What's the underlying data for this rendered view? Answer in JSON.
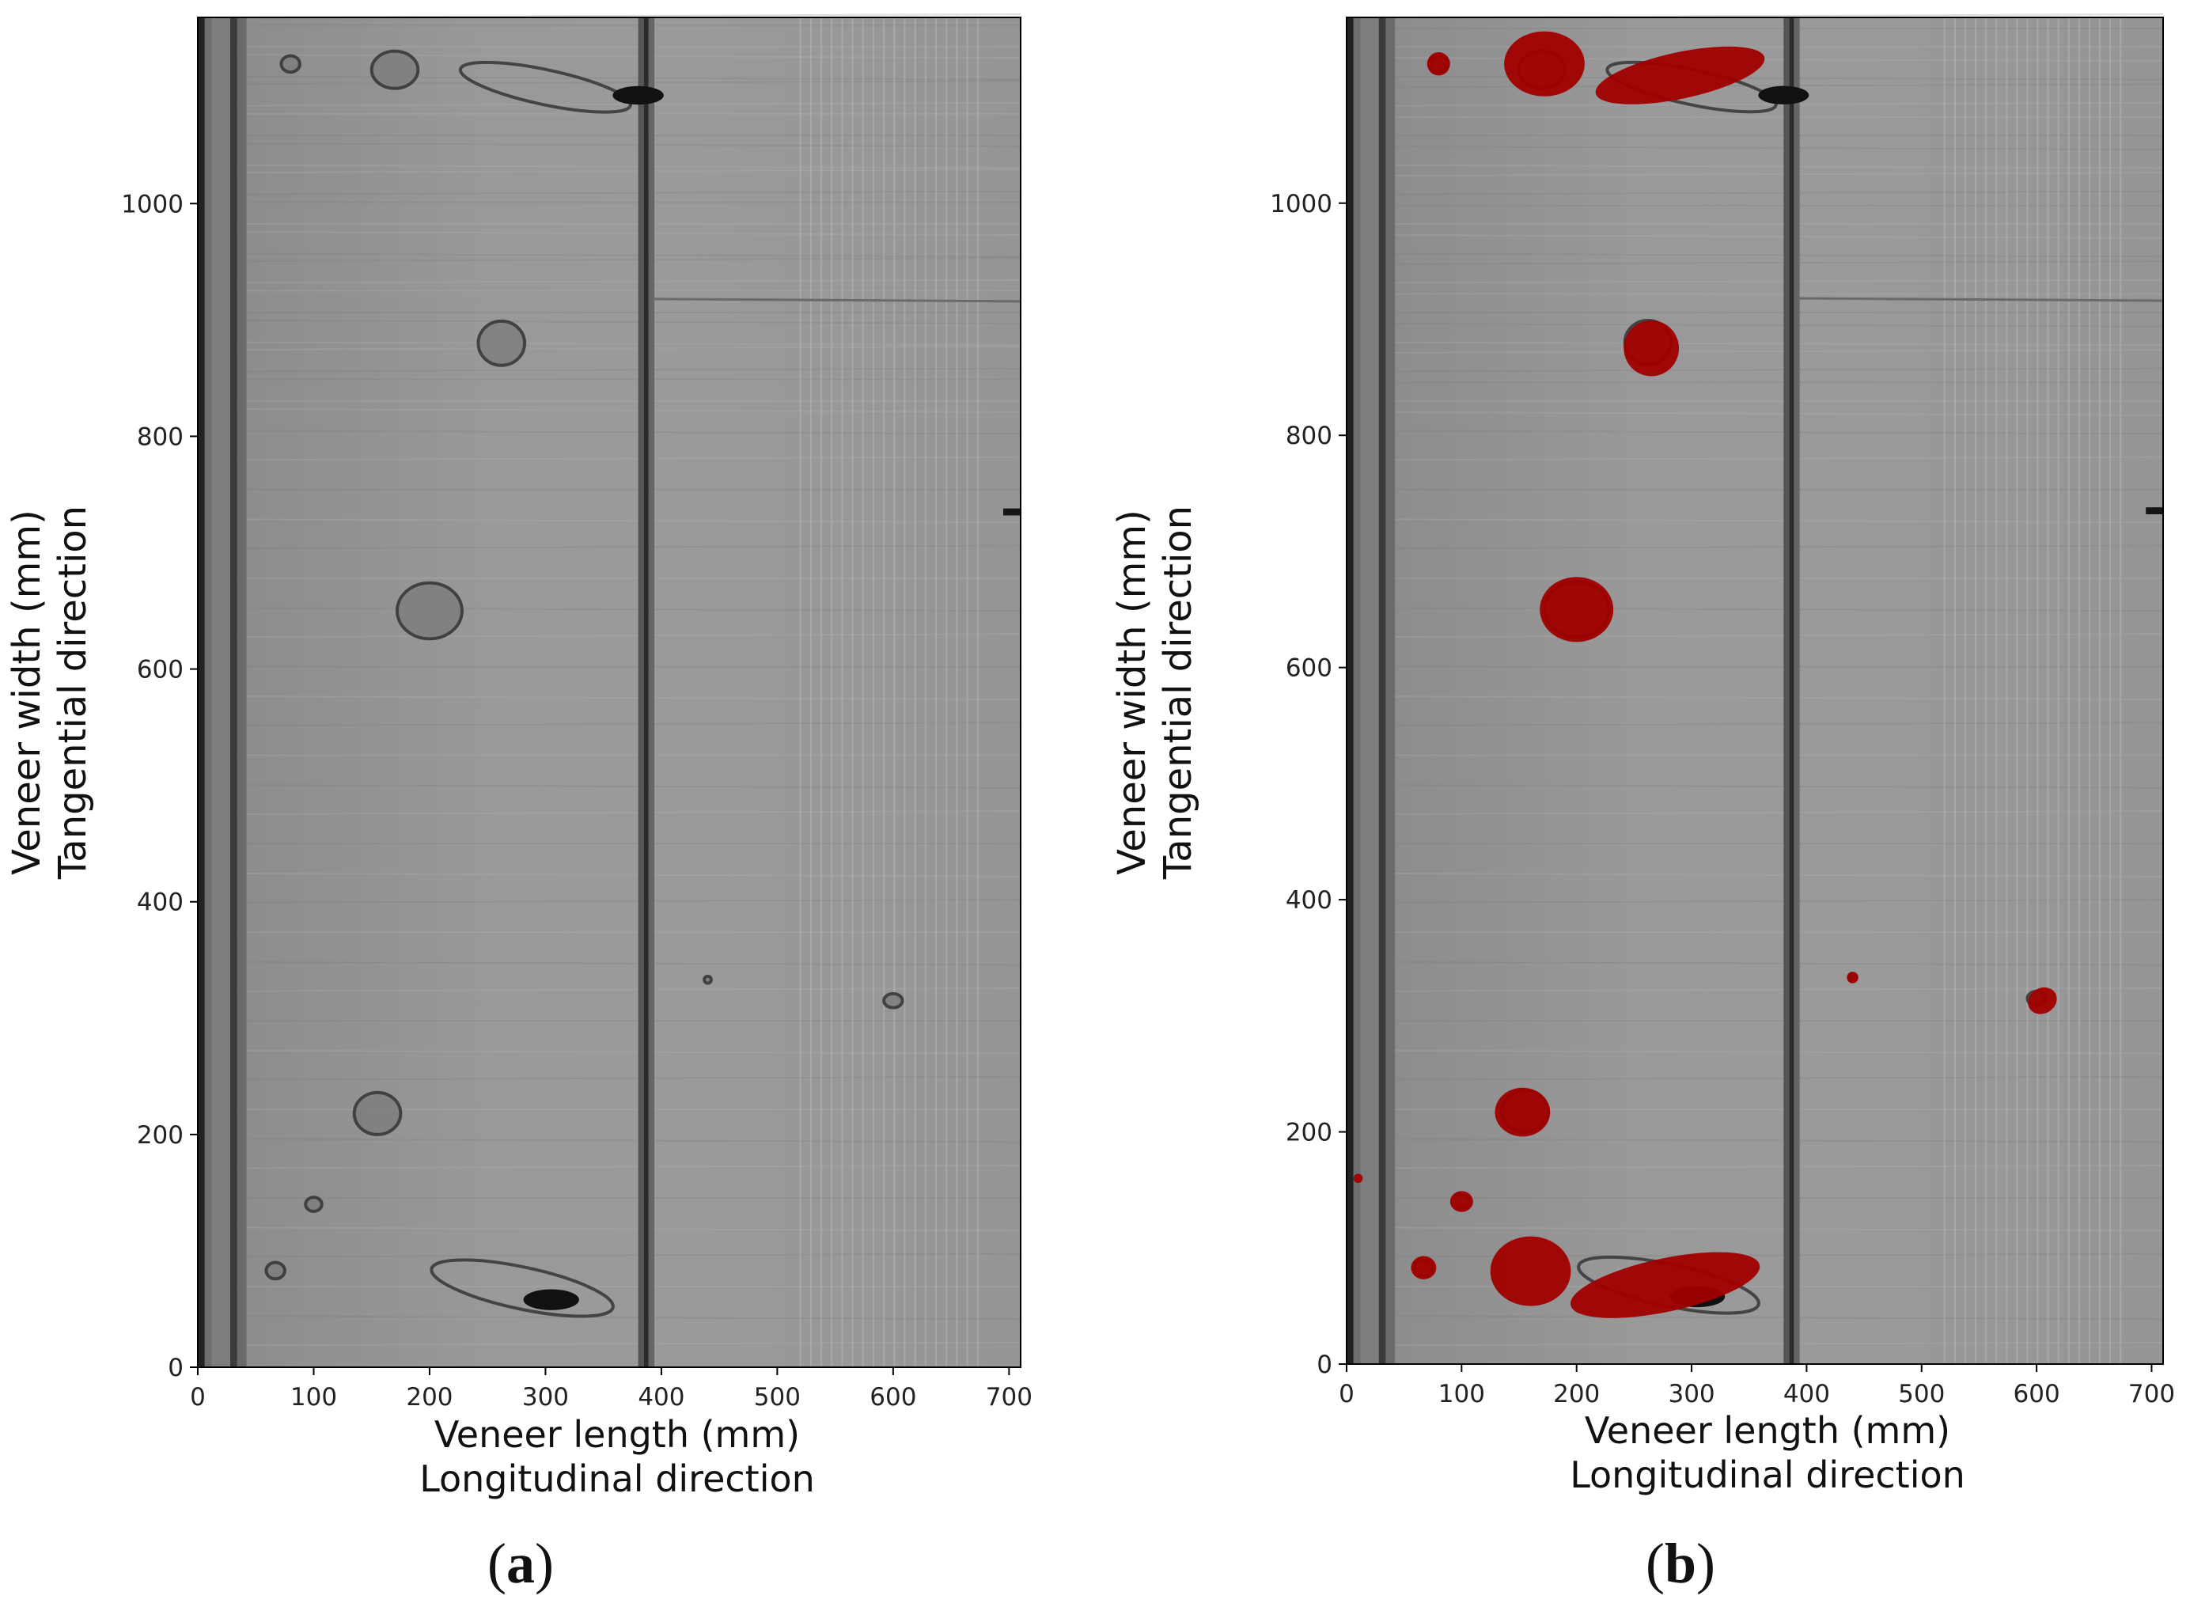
{
  "panels": [
    {
      "id": "a",
      "caption": "a",
      "xlabel_line1": "Veneer length (mm)",
      "xlabel_line2": "Longitudinal direction",
      "ylabel_line1": "Veneer width (mm)",
      "ylabel_line2": "Tangential direction",
      "x_ticks": [
        "0",
        "100",
        "200",
        "300",
        "400",
        "500",
        "600",
        "700"
      ],
      "y_ticks": [
        "0",
        "200",
        "400",
        "600",
        "800",
        "1000"
      ]
    },
    {
      "id": "b",
      "caption": "b",
      "xlabel_line1": "Veneer length (mm)",
      "xlabel_line2": "Longitudinal direction",
      "ylabel_line1": "Veneer width (mm)",
      "ylabel_line2": "Tangential direction",
      "x_ticks": [
        "0",
        "100",
        "200",
        "300",
        "400",
        "500",
        "600",
        "700"
      ],
      "y_ticks": [
        "0",
        "200",
        "400",
        "600",
        "800",
        "1000"
      ]
    }
  ],
  "axes": {
    "xlim": [
      0,
      710
    ],
    "ylim": [
      0,
      1160
    ]
  },
  "colors": {
    "veneer": "#8f8f8f",
    "defect_overlay": "#a00000",
    "knot_dark": "#1a1a1a"
  },
  "defects_b": [
    {
      "x": 80,
      "y": 1120,
      "rx": 10,
      "ry": 10,
      "angle": 0
    },
    {
      "x": 172,
      "y": 1120,
      "rx": 35,
      "ry": 28,
      "angle": 0
    },
    {
      "x": 290,
      "y": 1110,
      "rx": 75,
      "ry": 20,
      "angle": -12
    },
    {
      "x": 265,
      "y": 875,
      "rx": 24,
      "ry": 24,
      "angle": 0
    },
    {
      "x": 200,
      "y": 650,
      "rx": 32,
      "ry": 28,
      "angle": 0
    },
    {
      "x": 440,
      "y": 333,
      "rx": 5,
      "ry": 5,
      "angle": 0
    },
    {
      "x": 605,
      "y": 313,
      "rx": 13,
      "ry": 11,
      "angle": -30
    },
    {
      "x": 153,
      "y": 217,
      "rx": 24,
      "ry": 21,
      "angle": 0
    },
    {
      "x": 10,
      "y": 160,
      "rx": 4,
      "ry": 4,
      "angle": 0
    },
    {
      "x": 100,
      "y": 140,
      "rx": 10,
      "ry": 9,
      "angle": 0
    },
    {
      "x": 67,
      "y": 83,
      "rx": 11,
      "ry": 10,
      "angle": 0
    },
    {
      "x": 160,
      "y": 80,
      "rx": 35,
      "ry": 30,
      "angle": 0
    },
    {
      "x": 277,
      "y": 68,
      "rx": 84,
      "ry": 23,
      "angle": -12
    }
  ],
  "knots_a": [
    {
      "x": 80,
      "y": 1120,
      "rx": 8,
      "ry": 7
    },
    {
      "x": 170,
      "y": 1115,
      "rx": 20,
      "ry": 16
    },
    {
      "x": 262,
      "y": 880,
      "rx": 20,
      "ry": 19
    },
    {
      "x": 200,
      "y": 650,
      "rx": 28,
      "ry": 24
    },
    {
      "x": 440,
      "y": 333,
      "rx": 3,
      "ry": 3
    },
    {
      "x": 600,
      "y": 315,
      "rx": 8,
      "ry": 6
    },
    {
      "x": 155,
      "y": 218,
      "rx": 20,
      "ry": 18
    },
    {
      "x": 100,
      "y": 140,
      "rx": 7,
      "ry": 6
    },
    {
      "x": 67,
      "y": 83,
      "rx": 8,
      "ry": 7
    }
  ]
}
